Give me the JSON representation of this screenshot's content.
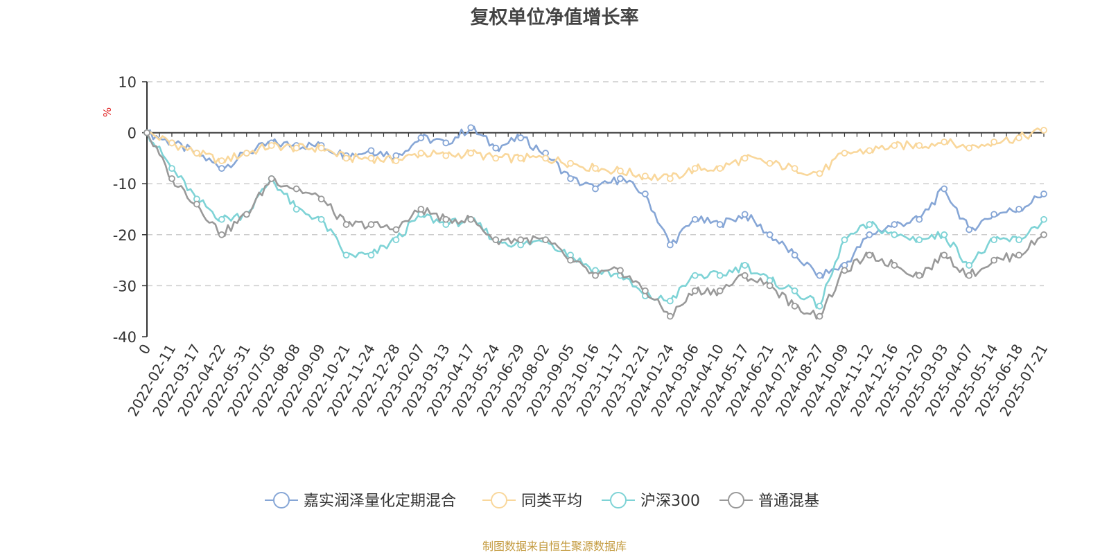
{
  "chart_data": {
    "type": "line",
    "title": "复权单位净值增长率",
    "ylabel": "%",
    "ylim": [
      -40,
      10
    ],
    "yticks": [
      10,
      0,
      -10,
      -20,
      -30,
      -40
    ],
    "grid": true,
    "legend_position": "bottom",
    "source": "制图数据来自恒生聚源数据库",
    "x": [
      "0",
      "2022-02-11",
      "2022-03-17",
      "2022-04-22",
      "2022-05-31",
      "2022-07-05",
      "2022-08-08",
      "2022-09-09",
      "2022-10-21",
      "2022-11-24",
      "2022-12-28",
      "2023-02-07",
      "2023-03-13",
      "2023-04-17",
      "2023-05-24",
      "2023-06-29",
      "2023-08-02",
      "2023-09-05",
      "2023-10-16",
      "2023-11-17",
      "2023-12-21",
      "2024-01-24",
      "2024-03-06",
      "2024-04-10",
      "2024-05-17",
      "2024-06-21",
      "2024-07-24",
      "2024-08-27",
      "2024-10-09",
      "2024-11-12",
      "2024-12-16",
      "2025-01-20",
      "2025-03-03",
      "2025-04-07",
      "2025-05-14",
      "2025-06-18",
      "2025-07-21"
    ],
    "series": [
      {
        "name": "嘉实润泽量化定期混合",
        "color": "#86a6d6",
        "values": [
          0,
          -2,
          -4,
          -7,
          -4,
          -2,
          -2.5,
          -2.5,
          -4.5,
          -3.5,
          -4.5,
          -1,
          -2,
          1,
          -3,
          -1,
          -4,
          -9,
          -11,
          -9,
          -12,
          -22,
          -17,
          -18,
          -16,
          -20,
          -24,
          -28,
          -26,
          -20,
          -18,
          -17,
          -11,
          -19,
          -16,
          -15,
          -12
        ]
      },
      {
        "name": "同类平均",
        "color": "#f9d79b",
        "values": [
          0,
          -2,
          -4,
          -5.5,
          -4,
          -2.5,
          -3,
          -3,
          -5,
          -5,
          -5.5,
          -4,
          -4.5,
          -4,
          -5,
          -5,
          -5,
          -6,
          -7,
          -7.5,
          -8.5,
          -9,
          -7,
          -7,
          -5,
          -6,
          -7,
          -8,
          -4,
          -3.5,
          -2.5,
          -2.5,
          -1.8,
          -3,
          -1.8,
          -1,
          0.5
        ]
      },
      {
        "name": "沪深300",
        "color": "#7ed3d6",
        "values": [
          0,
          -7,
          -13,
          -17,
          -16,
          -9,
          -15,
          -17,
          -24,
          -24,
          -21,
          -16,
          -18,
          -17,
          -21,
          -22,
          -21,
          -24,
          -27,
          -28,
          -32,
          -33,
          -28,
          -28,
          -26,
          -29,
          -31,
          -34,
          -21,
          -18,
          -20,
          -21,
          -20,
          -26,
          -21,
          -21,
          -17
        ]
      },
      {
        "name": "普通混基",
        "color": "#999999",
        "values": [
          0,
          -9,
          -14,
          -20,
          -16,
          -9,
          -11,
          -13,
          -18,
          -18,
          -19,
          -15,
          -17,
          -17,
          -21,
          -21,
          -21,
          -25,
          -28,
          -27,
          -31,
          -36,
          -31,
          -31,
          -28,
          -30,
          -34,
          -36,
          -27,
          -24,
          -26,
          -28,
          -24,
          -28,
          -25,
          -24,
          -20
        ]
      }
    ]
  }
}
